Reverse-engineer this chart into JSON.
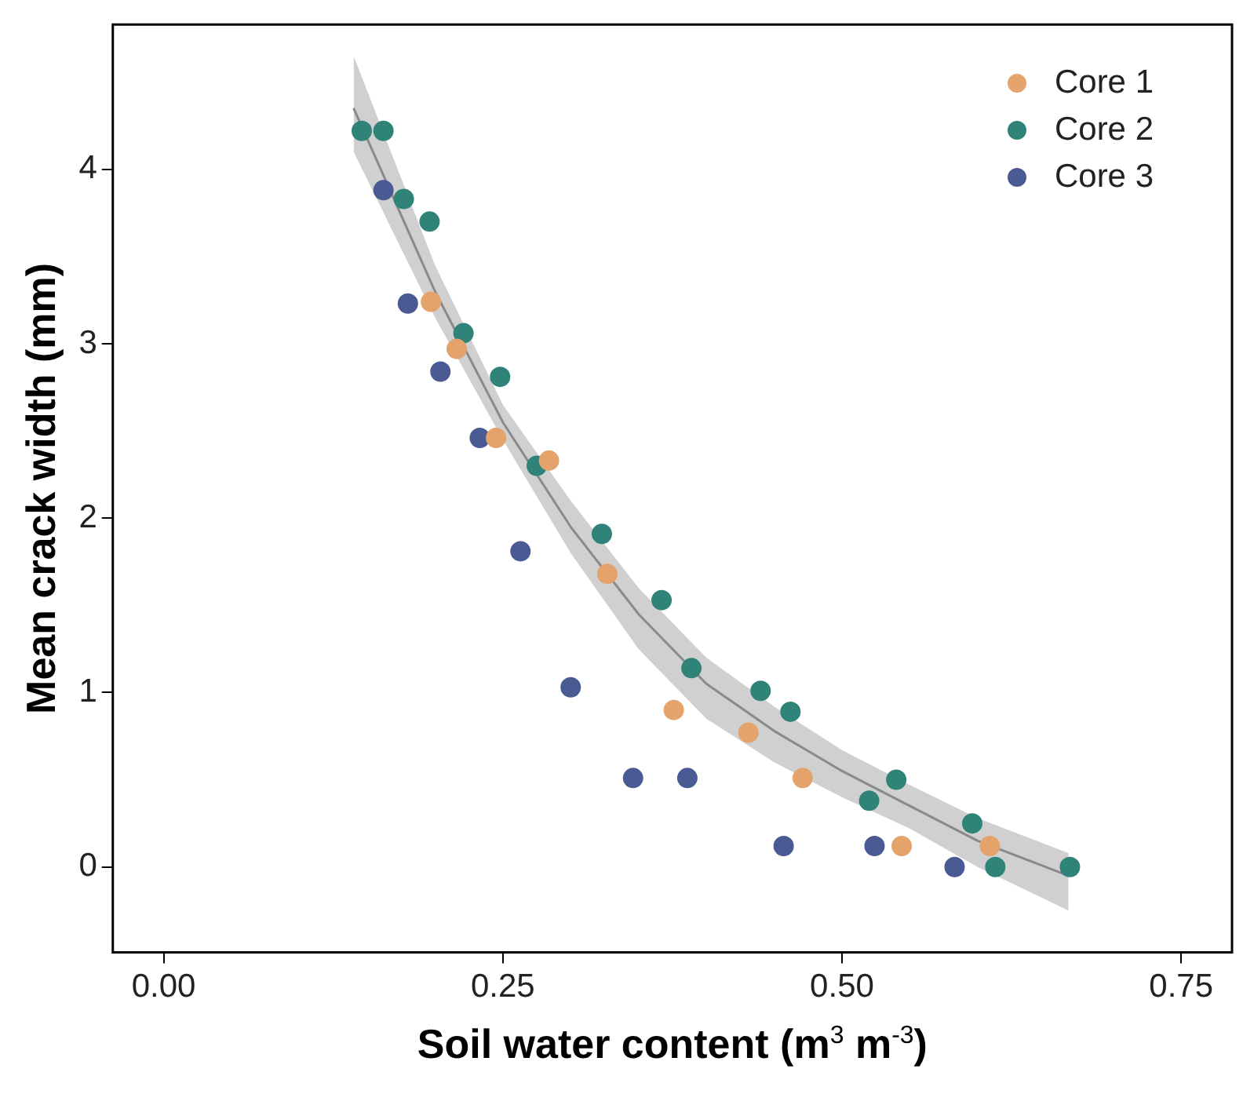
{
  "chart_data": {
    "type": "scatter",
    "xlabel": "Soil water content (m$^{3}$ m$^{-3}$)",
    "ylabel": "Mean crack width (mm)",
    "xlim": [
      -0.0375,
      0.7875
    ],
    "xticks": [
      {
        "value": 0,
        "label": "0.00"
      },
      {
        "value": 0.25,
        "label": "0.25"
      },
      {
        "value": 0.5,
        "label": "0.50"
      },
      {
        "value": 0.75,
        "label": "0.75"
      }
    ],
    "ylim": [
      -0.49,
      4.83
    ],
    "yticks": [
      0,
      1,
      2,
      3,
      4
    ],
    "grid": false,
    "legend": "top right",
    "marker": "circle",
    "series": [
      {
        "type": "line",
        "marker": "none",
        "color": "#8a8a8a",
        "x": [
          0.14,
          0.2,
          0.25,
          0.3,
          0.35,
          0.4,
          0.45,
          0.5,
          0.55,
          0.6,
          0.667
        ],
        "values": [
          4.35,
          3.3,
          2.55,
          1.95,
          1.45,
          1.05,
          0.78,
          0.55,
          0.35,
          0.15,
          -0.05
        ],
        "lower": [
          4.1,
          3.15,
          2.45,
          1.8,
          1.25,
          0.85,
          0.6,
          0.4,
          0.22,
          0.0,
          -0.25
        ],
        "upper": [
          4.65,
          3.45,
          2.65,
          2.1,
          1.6,
          1.2,
          0.92,
          0.67,
          0.47,
          0.28,
          0.08
        ]
      },
      {
        "name": "Core 1",
        "color": "#e3a36b",
        "x": [
          0.197,
          0.216,
          0.245,
          0.284,
          0.327,
          0.376,
          0.431,
          0.471,
          0.544,
          0.609
        ],
        "values": [
          3.24,
          2.97,
          2.46,
          2.33,
          1.68,
          0.9,
          0.77,
          0.51,
          0.12,
          0.12
        ]
      },
      {
        "name": "Core 2",
        "color": "#2f8378",
        "x": [
          0.146,
          0.162,
          0.177,
          0.196,
          0.221,
          0.248,
          0.275,
          0.323,
          0.367,
          0.389,
          0.44,
          0.462,
          0.52,
          0.54,
          0.596,
          0.613,
          0.668
        ],
        "values": [
          4.22,
          4.22,
          3.83,
          3.7,
          3.06,
          2.81,
          2.3,
          1.91,
          1.53,
          1.14,
          1.01,
          0.89,
          0.38,
          0.5,
          0.25,
          0,
          0
        ]
      },
      {
        "name": "Core 3",
        "color": "#4a5a93",
        "x": [
          0.162,
          0.18,
          0.204,
          0.233,
          0.263,
          0.3,
          0.346,
          0.386,
          0.457,
          0.524,
          0.583
        ],
        "values": [
          3.88,
          3.23,
          2.84,
          2.46,
          1.81,
          1.03,
          0.51,
          0.51,
          0.12,
          0.12,
          0
        ]
      }
    ]
  }
}
